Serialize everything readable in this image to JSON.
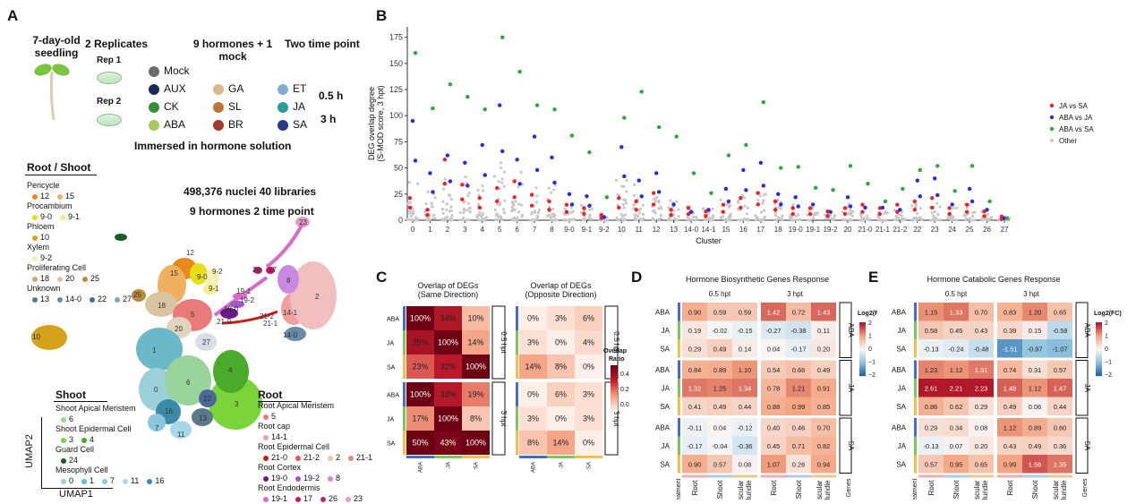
{
  "panel_labels": {
    "A": "A",
    "B": "B",
    "C": "C",
    "D": "D",
    "E": "E"
  },
  "panelA": {
    "seedling": "7-day-old seedling",
    "replicates": "2 Replicates",
    "rep1": "Rep 1",
    "rep2": "Rep 2",
    "hormones_title": "9 hormones + 1 mock",
    "timepoint_title": "Two time point",
    "time1": "0.5 h",
    "time2": "3 h",
    "immersed": "Immersed in hormone solution",
    "hormones": [
      {
        "name": "Mock",
        "color": "#6b6b6b"
      },
      {
        "name": "AUX",
        "color": "#1f2a5c"
      },
      {
        "name": "CK",
        "color": "#3a8a3a"
      },
      {
        "name": "ABA",
        "color": "#a8c95c"
      },
      {
        "name": "GA",
        "color": "#d9b98c"
      },
      {
        "name": "SL",
        "color": "#b9783a"
      },
      {
        "name": "BR",
        "color": "#a83a2a"
      },
      {
        "name": "ET",
        "color": "#7fb0d4"
      },
      {
        "name": "JA",
        "color": "#2a9a9a"
      },
      {
        "name": "SA",
        "color": "#2a3a8a"
      }
    ],
    "root_shoot_title": "Root / Shoot",
    "nuclei": "498,376 nuclei  40 libraries",
    "hormones_time": "9 hormones 2 time point",
    "rs_groups": [
      {
        "title": "Pericycle",
        "items": [
          {
            "label": "12",
            "color": "#e8891e"
          },
          {
            "label": "15",
            "color": "#f0b060"
          }
        ]
      },
      {
        "title": "Procambium",
        "items": [
          {
            "label": "9-0",
            "color": "#e6e01a"
          },
          {
            "label": "9-1",
            "color": "#f2ee8a"
          }
        ]
      },
      {
        "title": "Phloem",
        "items": [
          {
            "label": "10",
            "color": "#d4a21a"
          }
        ]
      },
      {
        "title": "Xylem",
        "items": [
          {
            "label": "9-2",
            "color": "#f4f0b8"
          }
        ]
      },
      {
        "title": "Proliferating Cell",
        "items": [
          {
            "label": "18",
            "color": "#c8a87a"
          },
          {
            "label": "20",
            "color": "#d9c6a0"
          },
          {
            "label": "25",
            "color": "#b88a3a"
          }
        ]
      },
      {
        "title": "Unknown",
        "items": [
          {
            "label": "13",
            "color": "#5a7a8a"
          },
          {
            "label": "14-0",
            "color": "#6a8aa8"
          },
          {
            "label": "22",
            "color": "#4a6a9a"
          },
          {
            "label": "27",
            "color": "#8aa0b8"
          }
        ]
      }
    ],
    "shoot_title": "Shoot",
    "shoot_groups": [
      {
        "title": "Shoot Apical Meristem",
        "items": [
          {
            "label": "6",
            "color": "#9ad49a"
          }
        ]
      },
      {
        "title": "Shoot Epidermal Cell",
        "items": [
          {
            "label": "3",
            "color": "#7ad43a"
          },
          {
            "label": "4",
            "color": "#4aaa2a"
          }
        ]
      },
      {
        "title": "Guard Cell",
        "items": [
          {
            "label": "24",
            "color": "#1a5a2a"
          }
        ]
      },
      {
        "title": "Mesophyll Cell",
        "items": [
          {
            "label": "0",
            "color": "#9ad0d8"
          },
          {
            "label": "1",
            "color": "#6ab8c8"
          },
          {
            "label": "7",
            "color": "#8ac8e0"
          },
          {
            "label": "11",
            "color": "#a8d8e8"
          },
          {
            "label": "16",
            "color": "#3a8aa8"
          }
        ]
      }
    ],
    "root_title": "Root",
    "root_groups": [
      {
        "title": "Root Apical Meristem",
        "items": [
          {
            "label": "5",
            "color": "#e87a7a"
          }
        ]
      },
      {
        "title": "Root cap",
        "items": [
          {
            "label": "14-1",
            "color": "#f0a0a0"
          }
        ]
      },
      {
        "title": "Root Epidermal Cell",
        "items": [
          {
            "label": "21-0",
            "color": "#c81a1a"
          },
          {
            "label": "21-2",
            "color": "#e05a5a"
          },
          {
            "label": "2",
            "color": "#f0c0c0"
          },
          {
            "label": "21-1",
            "color": "#d88a8a"
          }
        ]
      },
      {
        "title": "Root Cortex",
        "items": [
          {
            "label": "19-0",
            "color": "#6a1a8a"
          },
          {
            "label": "19-2",
            "color": "#9a5ac8"
          },
          {
            "label": "8",
            "color": "#c88ae0"
          }
        ]
      },
      {
        "title": "Root Endodermis",
        "items": [
          {
            "label": "19-1",
            "color": "#d86ac8"
          },
          {
            "label": "17",
            "color": "#c81a5a"
          },
          {
            "label": "26",
            "color": "#a82a6a"
          },
          {
            "label": "23",
            "color": "#e0a0c0"
          }
        ]
      }
    ],
    "umap_x": "UMAP1",
    "umap_y": "UMAP2",
    "umap_clusters": [
      "12",
      "15",
      "9-0",
      "9-2",
      "9-1",
      "18",
      "5",
      "20",
      "27",
      "25",
      "10",
      "1",
      "0",
      "6",
      "16",
      "7",
      "11",
      "14-1",
      "14-0",
      "2",
      "8",
      "3",
      "4",
      "22",
      "13",
      "23",
      "26",
      "17",
      "19-1",
      "19-2",
      "19-0",
      "21-0",
      "21-2",
      "21-1"
    ]
  },
  "chart_data": [
    {
      "type": "scatter",
      "ylabel": "DEG overlap degree (S-MOD score, 3 hpt)",
      "xlabel": "Cluster",
      "ylim": [
        0,
        185
      ],
      "yticks": [
        0,
        25,
        50,
        75,
        100,
        125,
        150,
        175
      ],
      "categories": [
        "0",
        "1",
        "2",
        "3",
        "4",
        "5",
        "6",
        "7",
        "8",
        "9-0",
        "9-1",
        "9-2",
        "10",
        "11",
        "12",
        "13",
        "14-0",
        "14-1",
        "15",
        "16",
        "17",
        "18",
        "19-0",
        "19-1",
        "19-2",
        "20",
        "21-0",
        "21-1",
        "21-2",
        "22",
        "23",
        "24",
        "25",
        "26",
        "27"
      ],
      "legend_position": "right",
      "series": [
        {
          "name": "JA vs SA",
          "color": "#e8242a",
          "values": [
            12,
            5,
            35,
            20,
            12,
            18,
            22,
            14,
            10,
            8,
            6,
            2,
            12,
            10,
            15,
            5,
            6,
            4,
            8,
            12,
            15,
            10,
            6,
            6,
            4,
            6,
            8,
            6,
            8,
            10,
            12,
            6,
            8,
            4,
            1
          ]
        },
        {
          "name": "ABA vs JA",
          "color": "#2a2ad8",
          "values": [
            95,
            45,
            62,
            55,
            72,
            110,
            58,
            80,
            60,
            25,
            23,
            3,
            70,
            38,
            45,
            15,
            8,
            10,
            30,
            48,
            55,
            25,
            22,
            15,
            8,
            22,
            12,
            12,
            10,
            38,
            40,
            15,
            30,
            10,
            2
          ]
        },
        {
          "name": "ABA vs SA",
          "color": "#2aa83a",
          "values": [
            160,
            107,
            130,
            118,
            106,
            175,
            142,
            110,
            106,
            81,
            65,
            22,
            98,
            123,
            89,
            80,
            45,
            26,
            62,
            72,
            113,
            50,
            51,
            31,
            29,
            52,
            35,
            18,
            30,
            48,
            52,
            28,
            52,
            18,
            2
          ]
        },
        {
          "name": "Other",
          "color": "#c8c8c8",
          "values": [
            20,
            15,
            25,
            22,
            18,
            30,
            25,
            20,
            18,
            8,
            8,
            2,
            20,
            18,
            15,
            10,
            8,
            6,
            10,
            12,
            15,
            10,
            8,
            6,
            4,
            8,
            6,
            4,
            6,
            8,
            10,
            6,
            8,
            4,
            1
          ]
        }
      ]
    },
    {
      "type": "heatmap",
      "title": "Overlap of DEGs (Same Direction)",
      "rows": [
        "ABA",
        "JA",
        "SA",
        "ABA",
        "JA",
        "SA"
      ],
      "columns": [
        "ABA",
        "JA",
        "SA"
      ],
      "row_groups": [
        "0.5 hpt",
        "3 hpt"
      ],
      "values": [
        [
          100,
          34,
          10
        ],
        [
          35,
          100,
          14
        ],
        [
          23,
          32,
          100
        ],
        [
          100,
          33,
          19
        ],
        [
          17,
          100,
          8
        ],
        [
          50,
          43,
          100
        ]
      ],
      "labels": [
        [
          "100%",
          "34%",
          "10%"
        ],
        [
          "35%",
          "100%",
          "14%"
        ],
        [
          "23%",
          "32%",
          "100%"
        ],
        [
          "100%",
          "33%",
          "19%"
        ],
        [
          "17%",
          "100%",
          "8%"
        ],
        [
          "50%",
          "43%",
          "100%"
        ]
      ]
    },
    {
      "type": "heatmap",
      "title": "Overlap of DEGs (Opposite Direction)",
      "rows": [
        "ABA",
        "JA",
        "SA",
        "ABA",
        "JA",
        "SA"
      ],
      "columns": [
        "ABA",
        "JA",
        "SA"
      ],
      "row_groups": [
        "0.5 hpt",
        "3 hpt"
      ],
      "values": [
        [
          0,
          3,
          6
        ],
        [
          3,
          0,
          4
        ],
        [
          14,
          8,
          0
        ],
        [
          0,
          6,
          3
        ],
        [
          3,
          0,
          3
        ],
        [
          8,
          14,
          0
        ]
      ],
      "labels": [
        [
          "0%",
          "3%",
          "6%"
        ],
        [
          "3%",
          "0%",
          "4%"
        ],
        [
          "14%",
          "8%",
          "0%"
        ],
        [
          "0%",
          "6%",
          "3%"
        ],
        [
          "3%",
          "0%",
          "3%"
        ],
        [
          "8%",
          "14%",
          "0%"
        ]
      ],
      "colorbar": {
        "title": "Overlap Ratio",
        "ticks": [
          "0.4",
          "0.2",
          "0.0"
        ]
      }
    },
    {
      "type": "heatmap",
      "title": "Hormone Biosynthetic Genes Response",
      "column_groups": [
        "0.5 hpt",
        "3 hpt"
      ],
      "columns": [
        "Root",
        "Shoot",
        "Vascular Bundle",
        "Root",
        "Shoot",
        "Vascular Bundle"
      ],
      "rows": [
        "ABA",
        "JA",
        "SA",
        "ABA",
        "JA",
        "SA",
        "ABA",
        "JA",
        "SA"
      ],
      "row_groups": [
        "ABA",
        "JA",
        "SA"
      ],
      "xlabel_left": "Treatment",
      "xlabel_right": "Genes",
      "values": [
        [
          0.9,
          0.59,
          0.59,
          1.42,
          0.72,
          1.43
        ],
        [
          0.19,
          -0.02,
          -0.15,
          -0.27,
          -0.38,
          0.11
        ],
        [
          0.29,
          0.49,
          0.14,
          0.04,
          -0.17,
          0.2
        ],
        [
          0.84,
          0.89,
          1.1,
          0.54,
          0.66,
          0.49
        ],
        [
          1.32,
          1.25,
          1.34,
          0.78,
          1.21,
          0.91
        ],
        [
          0.41,
          0.49,
          0.44,
          0.88,
          0.99,
          0.85
        ],
        [
          -0.11,
          0.04,
          -0.12,
          0.4,
          0.46,
          0.7
        ],
        [
          -0.17,
          -0.04,
          -0.36,
          0.45,
          0.71,
          0.82
        ],
        [
          0.9,
          0.57,
          0.08,
          1.07,
          0.26,
          0.94
        ]
      ],
      "colorbar": {
        "title": "Log2(FC)",
        "ticks": [
          "2",
          "1",
          "0",
          "−1",
          "−2"
        ]
      }
    },
    {
      "type": "heatmap",
      "title": "Hormone Catabolic Genes Response",
      "column_groups": [
        "0.5 hpt",
        "3 hpt"
      ],
      "columns": [
        "Root",
        "Shoot",
        "Vascular Bundle",
        "Root",
        "Shoot",
        "Vascular Bundle"
      ],
      "rows": [
        "ABA",
        "JA",
        "SA",
        "ABA",
        "JA",
        "SA",
        "ABA",
        "JA",
        "SA"
      ],
      "row_groups": [
        "ABA",
        "JA",
        "SA"
      ],
      "xlabel_left": "Treatment",
      "xlabel_right": "Genes",
      "values": [
        [
          1.15,
          1.33,
          0.7,
          0.83,
          1.2,
          0.65
        ],
        [
          0.58,
          0.45,
          0.43,
          0.39,
          0.15,
          -0.58
        ],
        [
          -0.13,
          -0.24,
          -0.48,
          -1.51,
          -0.97,
          -1.07
        ],
        [
          1.23,
          1.12,
          1.31,
          0.74,
          0.31,
          0.57
        ],
        [
          2.61,
          2.21,
          2.23,
          1.48,
          1.12,
          1.47
        ],
        [
          0.86,
          0.62,
          0.29,
          0.49,
          0.06,
          0.44
        ],
        [
          0.29,
          0.34,
          0.08,
          1.12,
          0.89,
          0.6
        ],
        [
          -0.13,
          0.07,
          0.2,
          0.43,
          0.49,
          0.36
        ],
        [
          0.57,
          0.95,
          0.65,
          0.99,
          1.56,
          1.35
        ]
      ],
      "colorbar": {
        "title": "Log2(FC)",
        "ticks": [
          "2",
          "1",
          "0",
          "−1",
          "−2"
        ]
      }
    }
  ]
}
